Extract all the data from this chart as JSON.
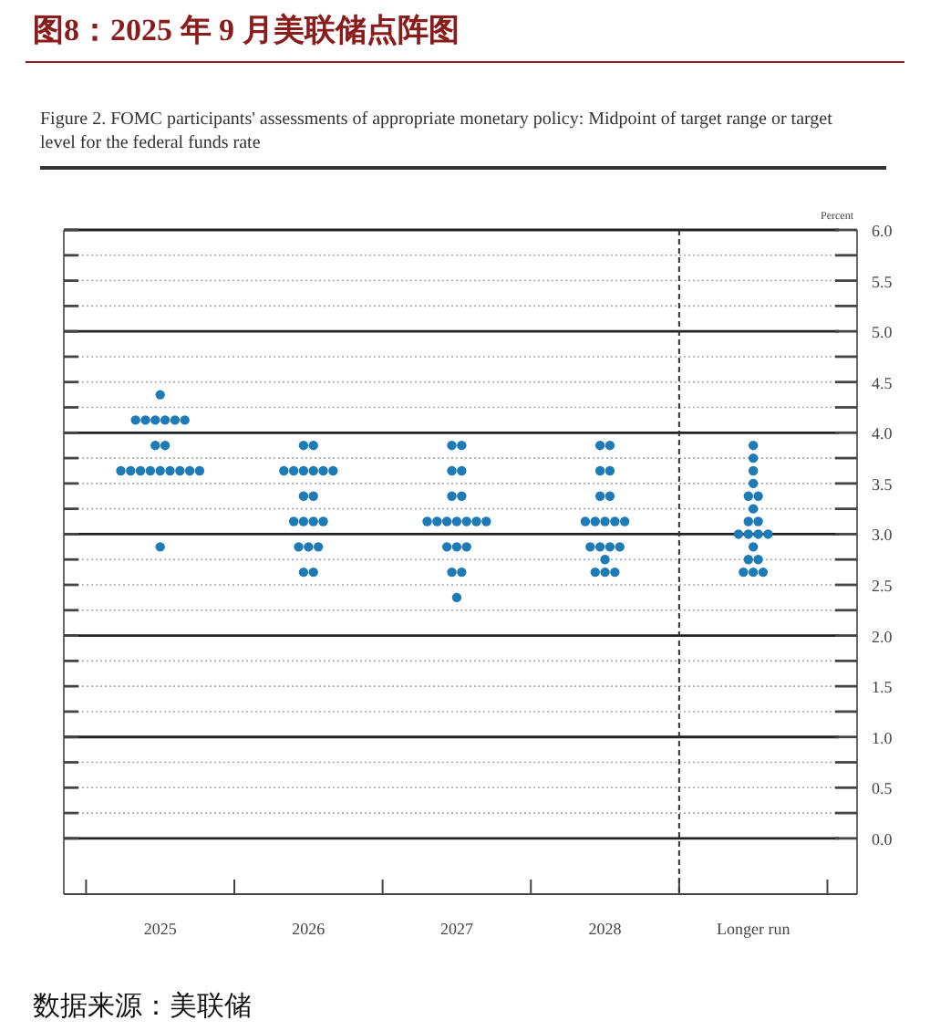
{
  "chart_data": {
    "type": "scatter",
    "title": "图8：2025 年 9 月美联储点阵图",
    "subtitle": "Figure 2. FOMC participants' assessments of appropriate monetary policy: Midpoint of target range or target level for the federal funds rate",
    "ylabel": "Percent",
    "annotations": [
      "数据来源：美联储"
    ],
    "categories": [
      "2025",
      "2026",
      "2027",
      "2028",
      "Longer run"
    ],
    "series": [
      {
        "color": "#1f7bb6",
        "values": [
          4.375,
          3.875,
          3.875,
          3.875,
          3.875
        ]
      },
      {
        "color": "#1f7bb6",
        "values": [
          4.125,
          3.875,
          3.875,
          3.875,
          3.75
        ]
      },
      {
        "color": "#1f7bb6",
        "values": [
          4.125,
          3.625,
          3.625,
          3.625,
          3.625
        ]
      },
      {
        "color": "#1f7bb6",
        "values": [
          4.125,
          3.625,
          3.625,
          3.625,
          3.5
        ]
      },
      {
        "color": "#1f7bb6",
        "values": [
          4.125,
          3.625,
          3.375,
          3.375,
          3.375
        ]
      },
      {
        "color": "#1f7bb6",
        "values": [
          4.125,
          3.625,
          3.375,
          3.375,
          3.375
        ]
      },
      {
        "color": "#1f7bb6",
        "values": [
          4.125,
          3.625,
          3.125,
          3.125,
          3.25
        ]
      },
      {
        "color": "#1f7bb6",
        "values": [
          3.875,
          3.625,
          3.125,
          3.125,
          3.125
        ]
      },
      {
        "color": "#1f7bb6",
        "values": [
          3.875,
          3.375,
          3.125,
          3.125,
          3.125
        ]
      },
      {
        "color": "#1f7bb6",
        "values": [
          3.625,
          3.375,
          3.125,
          3.125,
          3.0
        ]
      },
      {
        "color": "#1f7bb6",
        "values": [
          3.625,
          3.125,
          3.125,
          3.125,
          3.0
        ]
      },
      {
        "color": "#1f7bb6",
        "values": [
          3.625,
          3.125,
          3.125,
          2.875,
          3.0
        ]
      },
      {
        "color": "#1f7bb6",
        "values": [
          3.625,
          3.125,
          3.125,
          2.875,
          3.0
        ]
      },
      {
        "color": "#1f7bb6",
        "values": [
          3.625,
          3.125,
          2.875,
          2.875,
          2.875
        ]
      },
      {
        "color": "#1f7bb6",
        "values": [
          3.625,
          2.875,
          2.875,
          2.875,
          2.75
        ]
      },
      {
        "color": "#1f7bb6",
        "values": [
          3.625,
          2.875,
          2.875,
          2.75,
          2.75
        ]
      },
      {
        "color": "#1f7bb6",
        "values": [
          3.625,
          2.875,
          2.625,
          2.625,
          2.625
        ]
      },
      {
        "color": "#1f7bb6",
        "values": [
          3.625,
          2.625,
          2.625,
          2.625,
          2.625
        ]
      },
      {
        "color": "#1f7bb6",
        "values": [
          2.875,
          2.625,
          2.375,
          2.625,
          2.625
        ]
      }
    ],
    "marker": "circle",
    "ylim": [
      -0.55,
      6.0
    ],
    "yticks": [
      {
        "value": 0,
        "label": "0.0"
      },
      {
        "value": 0.25,
        "label": null
      },
      0.5,
      {
        "value": 0.75,
        "label": null
      },
      {
        "value": 1,
        "label": "1.0"
      },
      {
        "value": 1.25,
        "label": null
      },
      1.5,
      {
        "value": 1.75,
        "label": null
      },
      {
        "value": 2,
        "label": "2.0"
      },
      {
        "value": 2.25,
        "label": null
      },
      2.5,
      {
        "value": 2.75,
        "label": null
      },
      {
        "value": 3,
        "label": "3.0"
      },
      {
        "value": 3.25,
        "label": null
      },
      3.5,
      {
        "value": 3.75,
        "label": null
      },
      {
        "value": 4,
        "label": "4.0"
      },
      {
        "value": 4.25,
        "label": null
      },
      4.5,
      {
        "value": 4.75,
        "label": null
      },
      {
        "value": 5,
        "label": "5.0"
      },
      {
        "value": 5.25,
        "label": null
      },
      5.5,
      {
        "value": 5.75,
        "label": null
      },
      {
        "value": 6,
        "label": "6.0"
      }
    ],
    "grid": "y"
  }
}
